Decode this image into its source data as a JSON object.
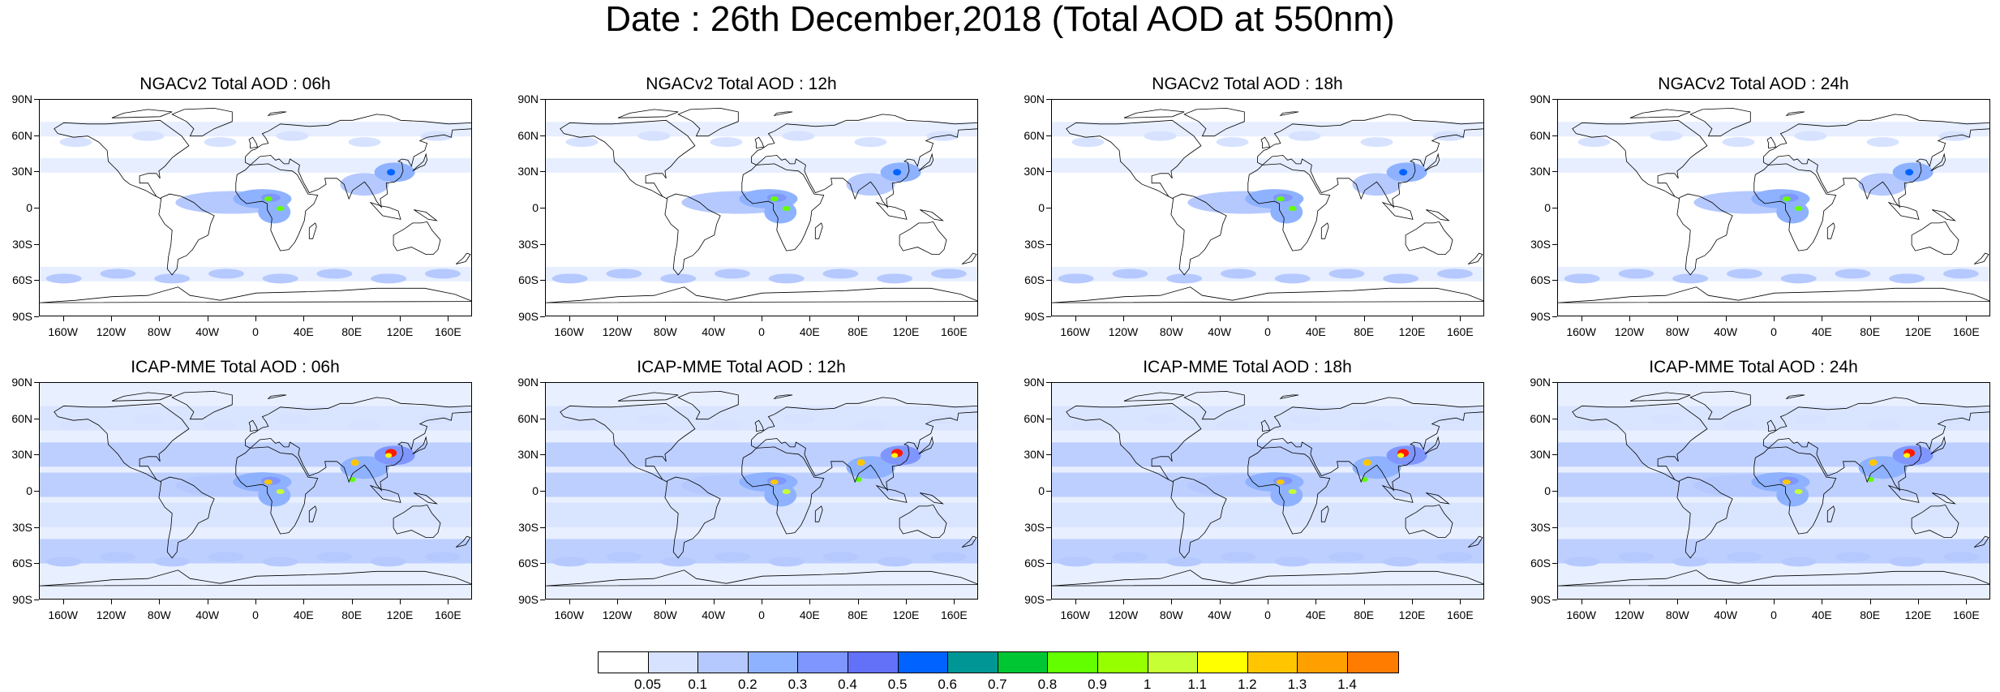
{
  "title": "Date : 26th December,2018 (Total AOD at 550nm)",
  "y_tick_labels": [
    "90N",
    "60N",
    "30N",
    "0",
    "30S",
    "60S",
    "90S"
  ],
  "x_tick_labels": [
    "160W",
    "120W",
    "80W",
    "40W",
    "0",
    "40E",
    "80E",
    "120E",
    "160E"
  ],
  "panels": [
    {
      "title": "NGACv2 Total AOD : 06h",
      "model": "NGACv2",
      "lead_time": "06h"
    },
    {
      "title": "NGACv2 Total AOD : 12h",
      "model": "NGACv2",
      "lead_time": "12h"
    },
    {
      "title": "NGACv2 Total AOD : 18h",
      "model": "NGACv2",
      "lead_time": "18h"
    },
    {
      "title": "NGACv2 Total AOD : 24h",
      "model": "NGACv2",
      "lead_time": "24h"
    },
    {
      "title": "ICAP-MME Total AOD : 06h",
      "model": "ICAP-MME",
      "lead_time": "06h"
    },
    {
      "title": "ICAP-MME Total AOD : 12h",
      "model": "ICAP-MME",
      "lead_time": "12h"
    },
    {
      "title": "ICAP-MME Total AOD : 18h",
      "model": "ICAP-MME",
      "lead_time": "18h"
    },
    {
      "title": "ICAP-MME Total AOD : 24h",
      "model": "ICAP-MME",
      "lead_time": "24h"
    }
  ],
  "colorbar": {
    "labels": [
      "0.05",
      "0.1",
      "0.2",
      "0.3",
      "0.4",
      "0.5",
      "0.6",
      "0.7",
      "0.8",
      "0.9",
      "1",
      "1.1",
      "1.2",
      "1.3",
      "1.4"
    ],
    "colors": [
      "#ffffff",
      "#d6e2ff",
      "#b5c9ff",
      "#8eb2ff",
      "#7f96ff",
      "#6370f8",
      "#0063ff",
      "#009696",
      "#00c633",
      "#63ff00",
      "#96ff00",
      "#c6ff33",
      "#ffff00",
      "#ffc600",
      "#ffa000",
      "#ff7c00",
      "#ff1900"
    ]
  },
  "map_colors": {
    "land_outline": "#000000",
    "low_aod": "#d6e2ff",
    "moderate_aod": "#b5c9ff",
    "elevated_aod": "#8eb2ff"
  }
}
